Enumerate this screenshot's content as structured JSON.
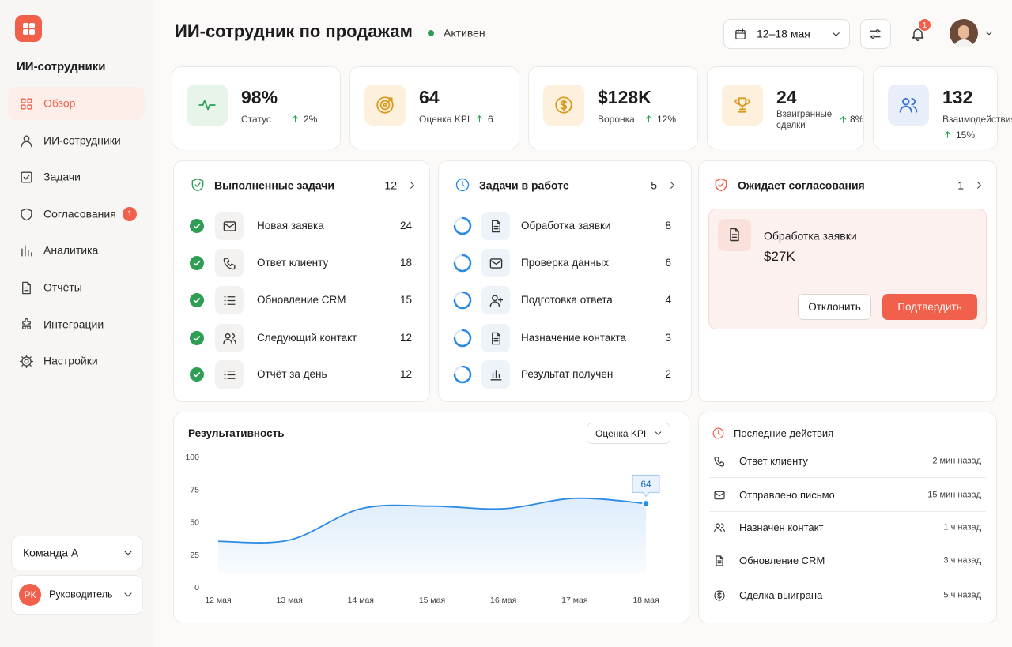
{
  "sidebar": {
    "title": "ИИ-сотрудники",
    "nav": [
      {
        "label": "Обзор"
      },
      {
        "label": "ИИ-сотрудники"
      },
      {
        "label": "Задачи"
      },
      {
        "label": "Согласования",
        "badge": 1
      },
      {
        "label": "Аналитика"
      },
      {
        "label": "Отчёты"
      },
      {
        "label": "Интеграции"
      },
      {
        "label": "Настройки"
      }
    ],
    "team": "Команда А",
    "user": {
      "initials": "РК",
      "role": "Руководитель"
    }
  },
  "header": {
    "title": "ИИ-сотрудник по продажам",
    "status": "Активен",
    "date_range": "12–18 мая",
    "notifications": 1
  },
  "kpis": [
    {
      "value": "98%",
      "label": "Статус",
      "change": "2%"
    },
    {
      "value": "64",
      "label": "Оценка KPI",
      "change": "6"
    },
    {
      "value": "$128K",
      "label": "Воронка",
      "change": "12%"
    },
    {
      "value": "24",
      "label": "Взаигранные сделки",
      "change": "8%"
    },
    {
      "value": "132",
      "label": "Взаимодействия",
      "change": "15%"
    }
  ],
  "completed_tasks": {
    "title": "Выполненные задачи",
    "count": 12,
    "items": [
      {
        "label": "Новая заявка",
        "count": 24
      },
      {
        "label": "Ответ клиенту",
        "count": 18
      },
      {
        "label": "Обновление CRM",
        "count": 15
      },
      {
        "label": "Следующий контакт",
        "count": 12
      },
      {
        "label": "Отчёт за день",
        "count": 12
      }
    ]
  },
  "tasks_in_progress": {
    "title": "Задачи в работе",
    "count": 5,
    "items": [
      {
        "label": "Обработка заявки",
        "count": 8
      },
      {
        "label": "Проверка данных",
        "count": 6
      },
      {
        "label": "Подготовка ответа",
        "count": 4
      },
      {
        "label": "Назначение контакта",
        "count": 3
      },
      {
        "label": "Результат получен",
        "count": 2
      }
    ]
  },
  "pending_approval": {
    "title": "Ожидает согласования",
    "count": 1,
    "item": {
      "label": "Обработка заявки",
      "amount": "$27K"
    },
    "reject": "Отклонить",
    "approve": "Подтвердить"
  },
  "performance": {
    "type": "line",
    "title": "Результативность",
    "metric": "Оценка KPI",
    "categories": [
      "12 мая",
      "13 мая",
      "14 мая",
      "15 мая",
      "16 мая",
      "17 мая",
      "18 мая"
    ],
    "values": [
      35,
      36,
      60,
      62,
      60,
      68,
      64
    ],
    "ylim": [
      0,
      100
    ],
    "yticks": [
      0,
      25,
      50,
      75,
      100
    ],
    "color": "#2b8ae6"
  },
  "recent_activity": {
    "title": "Последние действия",
    "items": [
      {
        "label": "Ответ клиенту",
        "time": "2 мин назад"
      },
      {
        "label": "Отправлено письмо",
        "time": "15 мин назад"
      },
      {
        "label": "Назначен контакт",
        "time": "1 ч назад"
      },
      {
        "label": "Обновление CRM",
        "time": "3 ч назад"
      },
      {
        "label": "Сделка выиграна",
        "time": "5 ч назад"
      }
    ]
  }
}
